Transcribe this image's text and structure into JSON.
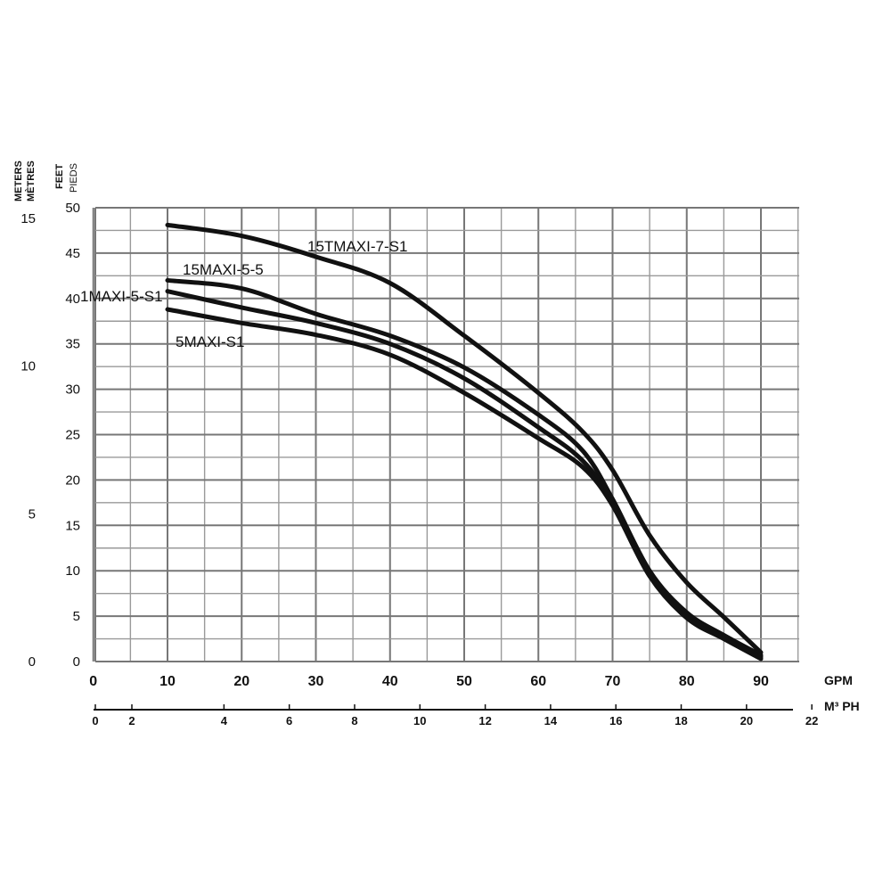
{
  "chart_data": {
    "type": "line",
    "title": "",
    "y_axes": {
      "meters": {
        "label_1": "METERS",
        "label_2": "MÈTRES",
        "ticks": [
          15,
          10,
          5,
          0
        ],
        "ylim": [
          0,
          15.24
        ]
      },
      "feet": {
        "label_1": "FEET",
        "label_2": "PIEDS",
        "ticks": [
          50,
          45,
          40,
          35,
          30,
          25,
          20,
          15,
          10,
          5,
          0
        ],
        "ylim": [
          0,
          50
        ]
      }
    },
    "x_axes": {
      "gpm": {
        "label": "GPM",
        "ticks": [
          0,
          10,
          20,
          30,
          40,
          50,
          60,
          70,
          80,
          90
        ],
        "xlim": [
          0,
          95
        ]
      },
      "m3ph": {
        "label": "M³ PH",
        "ticks": [
          0,
          2,
          4,
          6,
          8,
          10,
          12,
          14,
          16,
          18,
          20,
          22
        ]
      }
    },
    "grid": true,
    "series": [
      {
        "name": "15TMAXI-7-S1",
        "x": [
          10,
          20,
          30,
          40,
          50,
          60,
          66,
          70,
          75,
          80,
          85,
          90
        ],
        "y": [
          48.1,
          46.9,
          44.6,
          41.7,
          35.9,
          29.6,
          25.3,
          21.1,
          13.9,
          8.7,
          4.9,
          1.0
        ]
      },
      {
        "name": "15MAXI-5-5",
        "x": [
          10,
          20,
          30,
          40,
          50,
          60,
          66,
          70,
          75,
          80,
          85,
          90
        ],
        "y": [
          42.0,
          41.1,
          38.3,
          35.9,
          32.4,
          27.2,
          23.2,
          17.9,
          10.0,
          5.4,
          2.9,
          0.7
        ]
      },
      {
        "name": "1MAXI-5-S1",
        "x": [
          10,
          20,
          30,
          40,
          50,
          60,
          66,
          70,
          75,
          80,
          85,
          90
        ],
        "y": [
          40.8,
          39.0,
          37.3,
          35.0,
          31.2,
          25.8,
          22.1,
          17.5,
          9.8,
          5.1,
          2.6,
          0.5
        ]
      },
      {
        "name": "5MAXI-S1",
        "x": [
          10,
          20,
          30,
          40,
          50,
          60,
          66,
          70,
          75,
          80,
          85,
          90
        ],
        "y": [
          38.8,
          37.3,
          36.0,
          33.8,
          29.6,
          24.6,
          21.4,
          17.2,
          9.4,
          4.8,
          2.5,
          0.3
        ]
      }
    ]
  }
}
